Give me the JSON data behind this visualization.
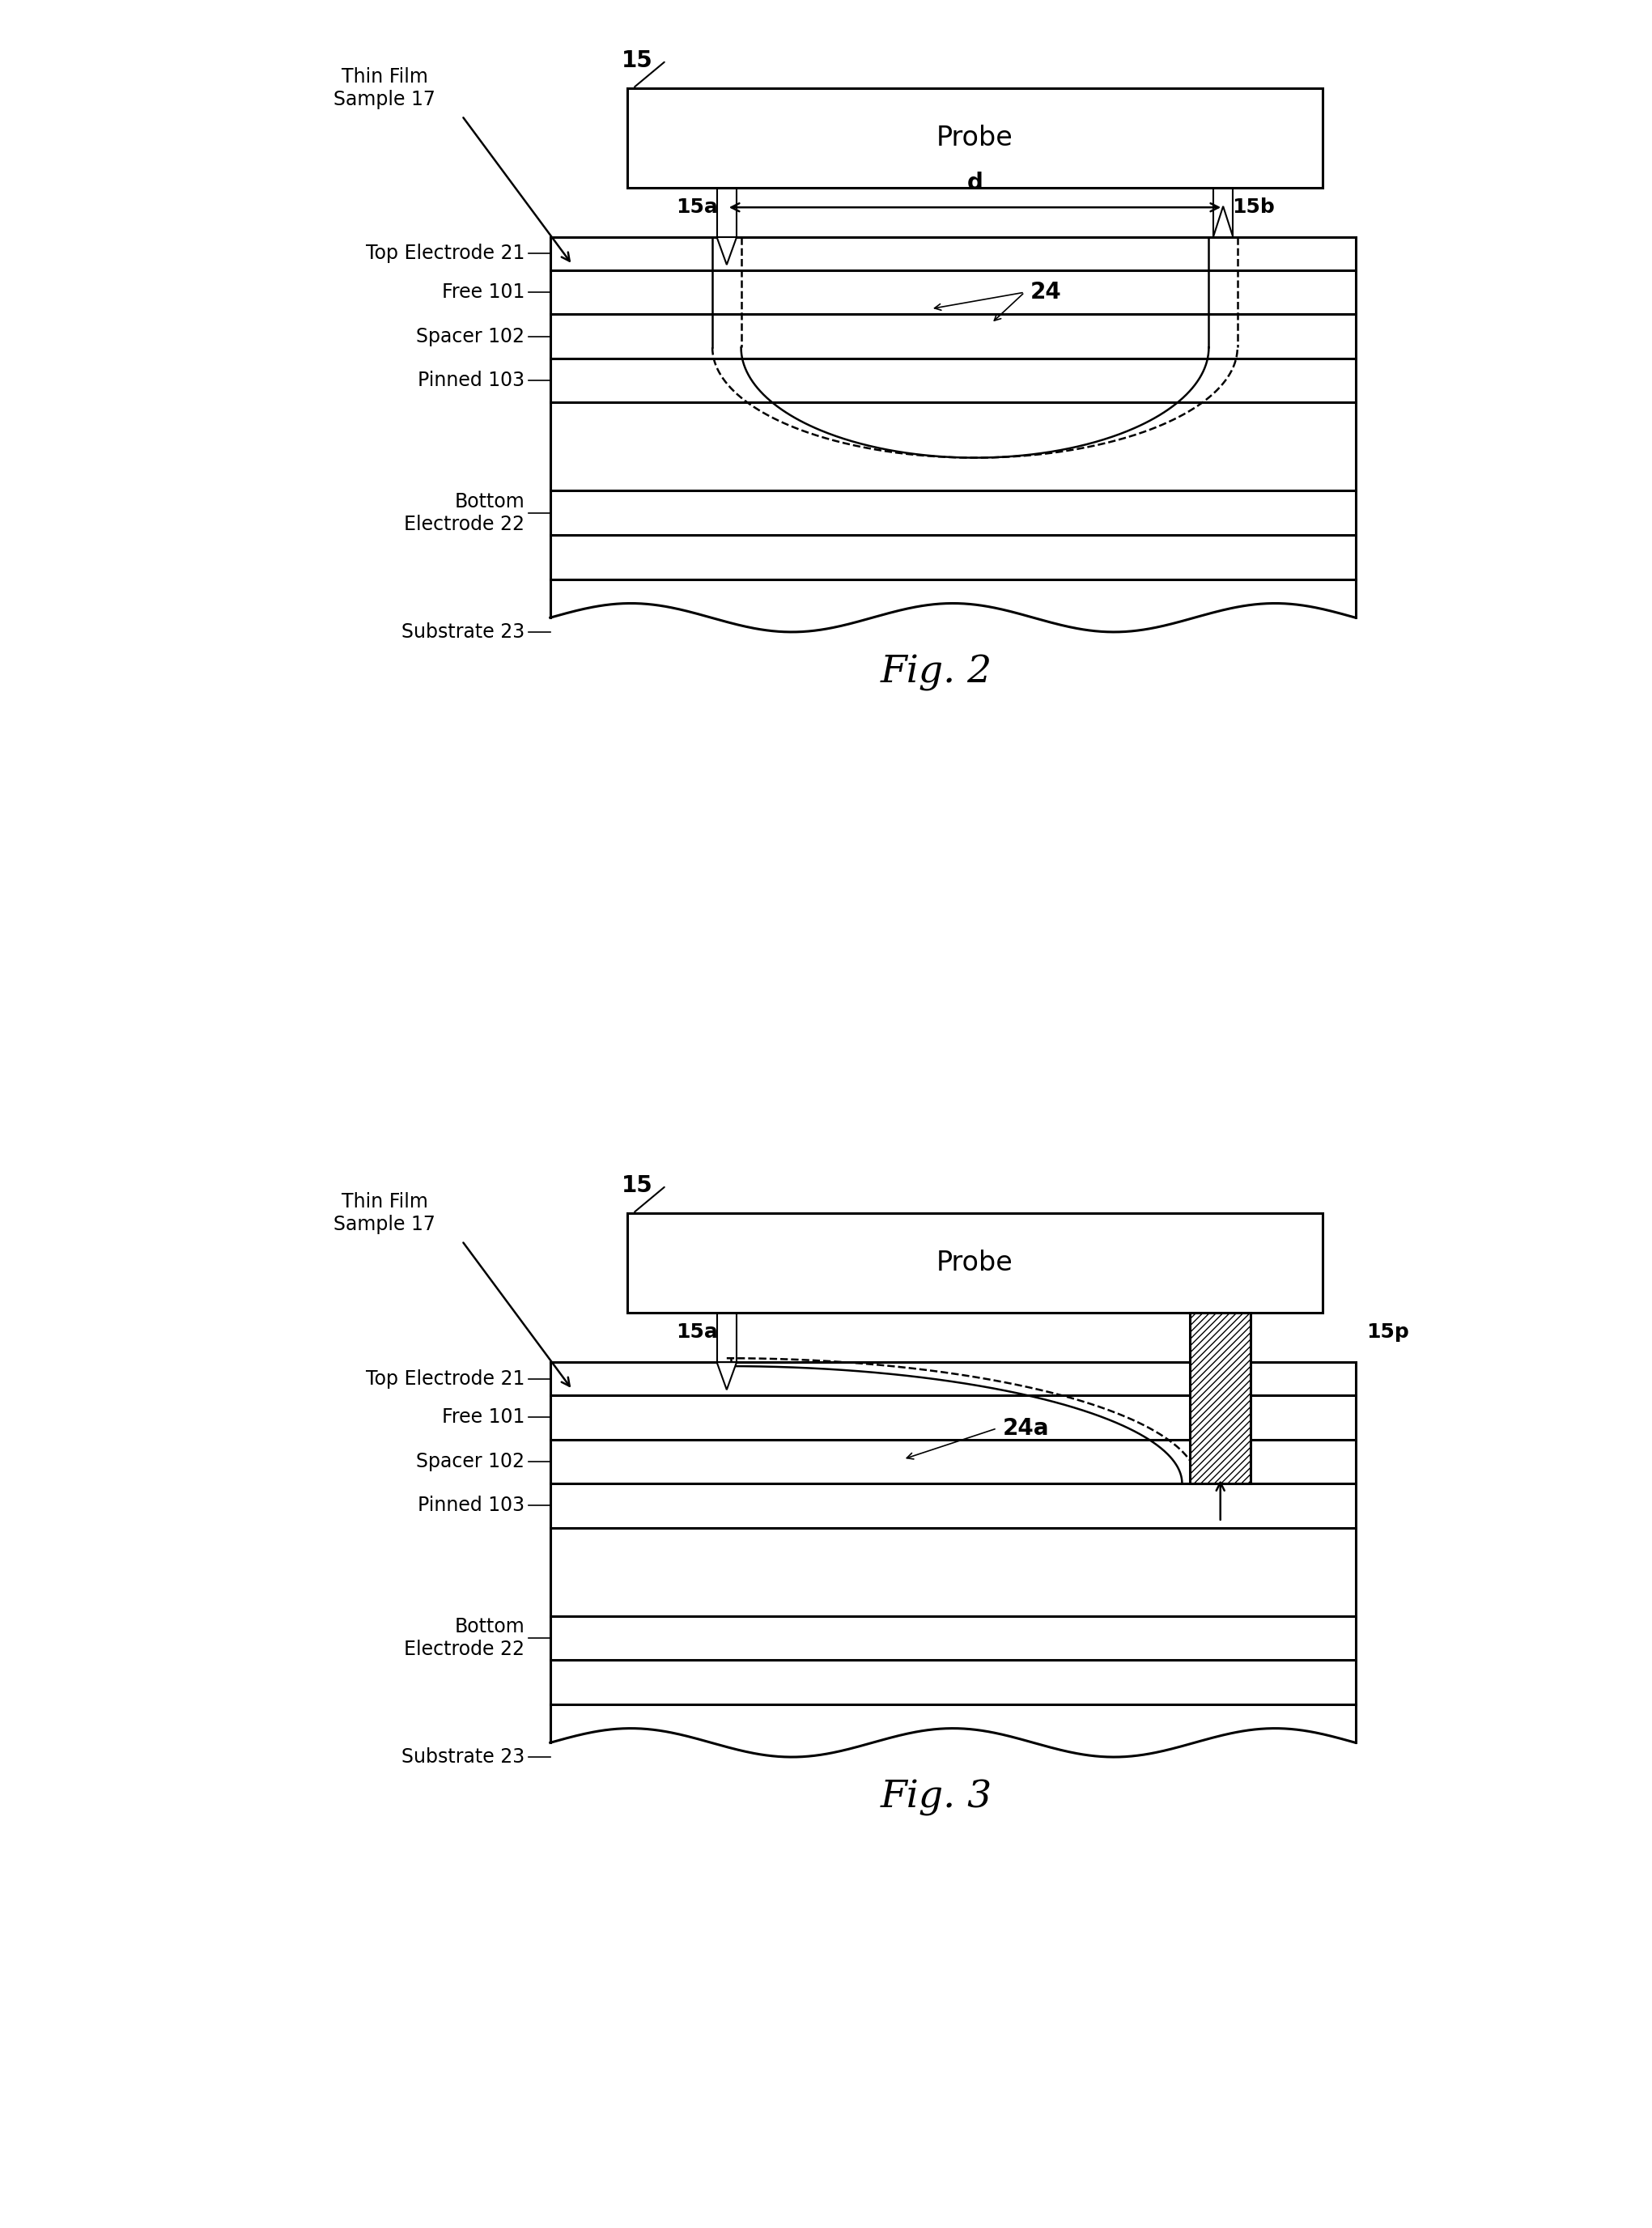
{
  "fig_width": 20.41,
  "fig_height": 27.53,
  "bg_color": "#ffffff",
  "line_color": "#000000",
  "fig2": {
    "title": "Fig. 2",
    "probe_label": "Probe",
    "probe_num": "15",
    "probe_left_num": "15a",
    "probe_right_num": "15b",
    "distance_label": "d",
    "left_label": "Thin Film\nSample 17",
    "current_label": "24"
  },
  "fig3": {
    "title": "Fig. 3",
    "probe_label": "Probe",
    "probe_num": "15",
    "probe_left_num": "15a",
    "probe_right_num": "15p",
    "left_label": "Thin Film\nSample 17",
    "current_label": "24a"
  }
}
